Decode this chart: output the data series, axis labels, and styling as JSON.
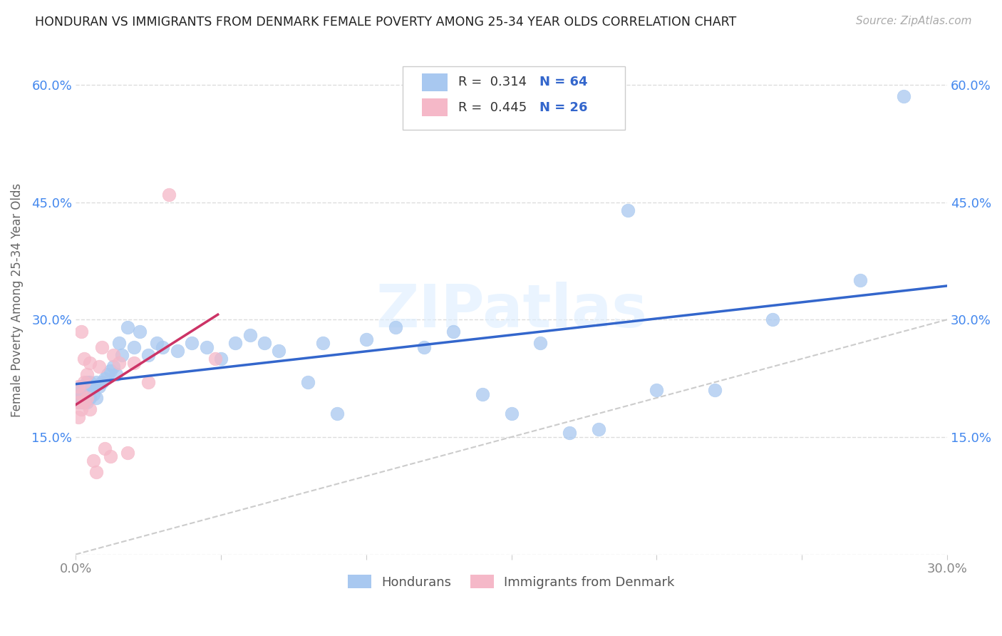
{
  "title": "HONDURAN VS IMMIGRANTS FROM DENMARK FEMALE POVERTY AMONG 25-34 YEAR OLDS CORRELATION CHART",
  "source": "Source: ZipAtlas.com",
  "ylabel": "Female Poverty Among 25-34 Year Olds",
  "xlim": [
    0.0,
    0.3
  ],
  "ylim": [
    0.0,
    0.65
  ],
  "x_ticks": [
    0.0,
    0.05,
    0.1,
    0.15,
    0.2,
    0.25,
    0.3
  ],
  "x_tick_labels": [
    "0.0%",
    "",
    "",
    "",
    "",
    "",
    "30.0%"
  ],
  "y_ticks": [
    0.0,
    0.15,
    0.3,
    0.45,
    0.6
  ],
  "y_tick_labels": [
    "",
    "15.0%",
    "30.0%",
    "45.0%",
    "60.0%"
  ],
  "blue_color": "#a8c8f0",
  "pink_color": "#f5b8c8",
  "blue_line_color": "#3366cc",
  "pink_line_color": "#cc3366",
  "diagonal_color": "#cccccc",
  "R_blue": 0.314,
  "N_blue": 64,
  "R_pink": 0.445,
  "N_pink": 26,
  "blue_x": [
    0.001,
    0.001,
    0.001,
    0.002,
    0.002,
    0.002,
    0.002,
    0.003,
    0.003,
    0.003,
    0.003,
    0.003,
    0.004,
    0.004,
    0.004,
    0.004,
    0.005,
    0.005,
    0.005,
    0.006,
    0.006,
    0.007,
    0.007,
    0.008,
    0.009,
    0.01,
    0.011,
    0.012,
    0.013,
    0.014,
    0.015,
    0.016,
    0.018,
    0.02,
    0.022,
    0.025,
    0.028,
    0.03,
    0.035,
    0.04,
    0.045,
    0.05,
    0.055,
    0.06,
    0.065,
    0.07,
    0.08,
    0.085,
    0.09,
    0.1,
    0.11,
    0.12,
    0.13,
    0.14,
    0.15,
    0.16,
    0.17,
    0.18,
    0.19,
    0.2,
    0.22,
    0.24,
    0.27,
    0.285
  ],
  "blue_y": [
    0.195,
    0.2,
    0.21,
    0.195,
    0.2,
    0.205,
    0.215,
    0.195,
    0.2,
    0.205,
    0.21,
    0.215,
    0.195,
    0.2,
    0.21,
    0.22,
    0.2,
    0.21,
    0.22,
    0.205,
    0.215,
    0.2,
    0.22,
    0.215,
    0.22,
    0.225,
    0.23,
    0.235,
    0.24,
    0.23,
    0.27,
    0.255,
    0.29,
    0.265,
    0.285,
    0.255,
    0.27,
    0.265,
    0.26,
    0.27,
    0.265,
    0.25,
    0.27,
    0.28,
    0.27,
    0.26,
    0.22,
    0.27,
    0.18,
    0.275,
    0.29,
    0.265,
    0.285,
    0.205,
    0.18,
    0.27,
    0.155,
    0.16,
    0.44,
    0.21,
    0.21,
    0.3,
    0.35,
    0.585
  ],
  "pink_x": [
    0.001,
    0.001,
    0.001,
    0.002,
    0.002,
    0.002,
    0.003,
    0.003,
    0.003,
    0.004,
    0.004,
    0.005,
    0.005,
    0.006,
    0.007,
    0.008,
    0.009,
    0.01,
    0.012,
    0.013,
    0.015,
    0.018,
    0.02,
    0.025,
    0.032,
    0.048
  ],
  "pink_y": [
    0.195,
    0.215,
    0.175,
    0.185,
    0.205,
    0.285,
    0.195,
    0.25,
    0.22,
    0.2,
    0.23,
    0.185,
    0.245,
    0.12,
    0.105,
    0.24,
    0.265,
    0.135,
    0.125,
    0.255,
    0.245,
    0.13,
    0.245,
    0.22,
    0.46,
    0.25
  ],
  "watermark": "ZIPatlas",
  "background_color": "#ffffff",
  "grid_color": "#dddddd",
  "legend_label_blue": "Hondurans",
  "legend_label_pink": "Immigrants from Denmark"
}
